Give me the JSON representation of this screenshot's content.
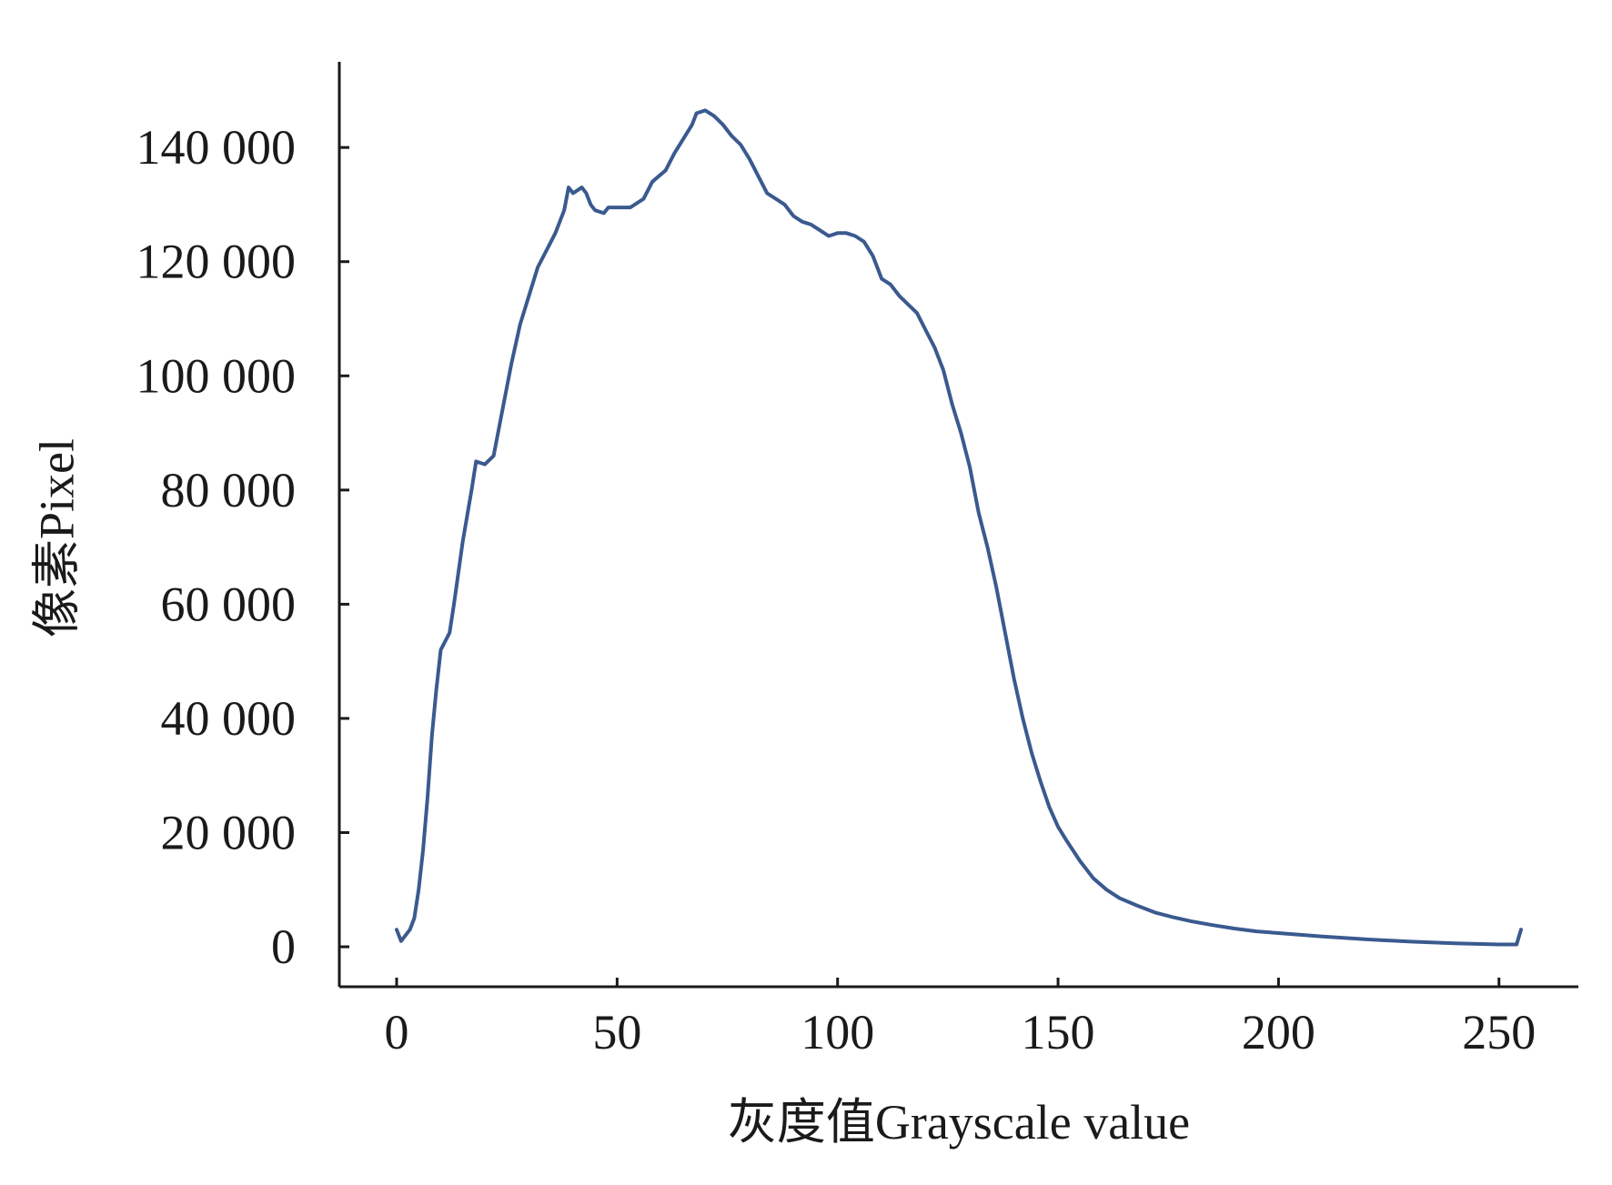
{
  "chart_data": {
    "type": "line",
    "xlabel": "灰度值Grayscale value",
    "ylabel": "像素Pixel",
    "xlim": [
      -13,
      268
    ],
    "ylim": [
      -7000,
      155000
    ],
    "x_ticks": [
      0,
      50,
      100,
      150,
      200,
      250
    ],
    "x_tick_labels": [
      "0",
      "50",
      "100",
      "150",
      "200",
      "250"
    ],
    "y_ticks": [
      0,
      20000,
      40000,
      60000,
      80000,
      100000,
      120000,
      140000
    ],
    "y_tick_labels": [
      "0",
      "20 000",
      "40 000",
      "60 000",
      "80 000",
      "100 000",
      "120 000",
      "140 000"
    ],
    "grid": false,
    "series_color": "#3a5a8f",
    "series": [
      {
        "values": [
          [
            0,
            3000
          ],
          [
            1,
            1000
          ],
          [
            3,
            3000
          ],
          [
            4,
            5000
          ],
          [
            5,
            10000
          ],
          [
            6,
            17000
          ],
          [
            7,
            26000
          ],
          [
            8,
            37000
          ],
          [
            9,
            45000
          ],
          [
            10,
            52000
          ],
          [
            12,
            55000
          ],
          [
            13,
            60000
          ],
          [
            15,
            71000
          ],
          [
            17,
            80000
          ],
          [
            18,
            85000
          ],
          [
            20,
            84500
          ],
          [
            22,
            86000
          ],
          [
            24,
            94000
          ],
          [
            26,
            102000
          ],
          [
            28,
            109000
          ],
          [
            30,
            114000
          ],
          [
            32,
            119000
          ],
          [
            34,
            122000
          ],
          [
            36,
            125000
          ],
          [
            38,
            129000
          ],
          [
            39,
            133000
          ],
          [
            40,
            132000
          ],
          [
            42,
            133000
          ],
          [
            43,
            132000
          ],
          [
            44,
            130000
          ],
          [
            45,
            129000
          ],
          [
            47,
            128500
          ],
          [
            48,
            129500
          ],
          [
            50,
            129500
          ],
          [
            53,
            129500
          ],
          [
            56,
            131000
          ],
          [
            58,
            134000
          ],
          [
            61,
            136000
          ],
          [
            63,
            139000
          ],
          [
            65,
            141500
          ],
          [
            67,
            144000
          ],
          [
            68,
            146000
          ],
          [
            70,
            146500
          ],
          [
            72,
            145500
          ],
          [
            74,
            144000
          ],
          [
            76,
            142000
          ],
          [
            78,
            140500
          ],
          [
            80,
            138000
          ],
          [
            82,
            135000
          ],
          [
            84,
            132000
          ],
          [
            86,
            131000
          ],
          [
            88,
            130000
          ],
          [
            90,
            128000
          ],
          [
            92,
            127000
          ],
          [
            94,
            126500
          ],
          [
            96,
            125500
          ],
          [
            98,
            124500
          ],
          [
            100,
            125000
          ],
          [
            102,
            125000
          ],
          [
            104,
            124500
          ],
          [
            106,
            123500
          ],
          [
            108,
            121000
          ],
          [
            110,
            117000
          ],
          [
            112,
            116000
          ],
          [
            114,
            114000
          ],
          [
            116,
            112500
          ],
          [
            118,
            111000
          ],
          [
            120,
            108000
          ],
          [
            122,
            105000
          ],
          [
            124,
            101000
          ],
          [
            126,
            95000
          ],
          [
            128,
            90000
          ],
          [
            130,
            84000
          ],
          [
            132,
            76000
          ],
          [
            134,
            70000
          ],
          [
            136,
            63000
          ],
          [
            138,
            55000
          ],
          [
            140,
            47000
          ],
          [
            142,
            40000
          ],
          [
            144,
            34000
          ],
          [
            146,
            29000
          ],
          [
            148,
            24500
          ],
          [
            150,
            21000
          ],
          [
            152,
            18500
          ],
          [
            155,
            15000
          ],
          [
            158,
            12000
          ],
          [
            161,
            10000
          ],
          [
            164,
            8500
          ],
          [
            168,
            7200
          ],
          [
            172,
            6000
          ],
          [
            176,
            5200
          ],
          [
            180,
            4500
          ],
          [
            185,
            3800
          ],
          [
            190,
            3200
          ],
          [
            195,
            2700
          ],
          [
            200,
            2400
          ],
          [
            210,
            1800
          ],
          [
            220,
            1300
          ],
          [
            230,
            900
          ],
          [
            240,
            600
          ],
          [
            250,
            400
          ],
          [
            254,
            400
          ],
          [
            255,
            3000
          ]
        ]
      }
    ]
  }
}
